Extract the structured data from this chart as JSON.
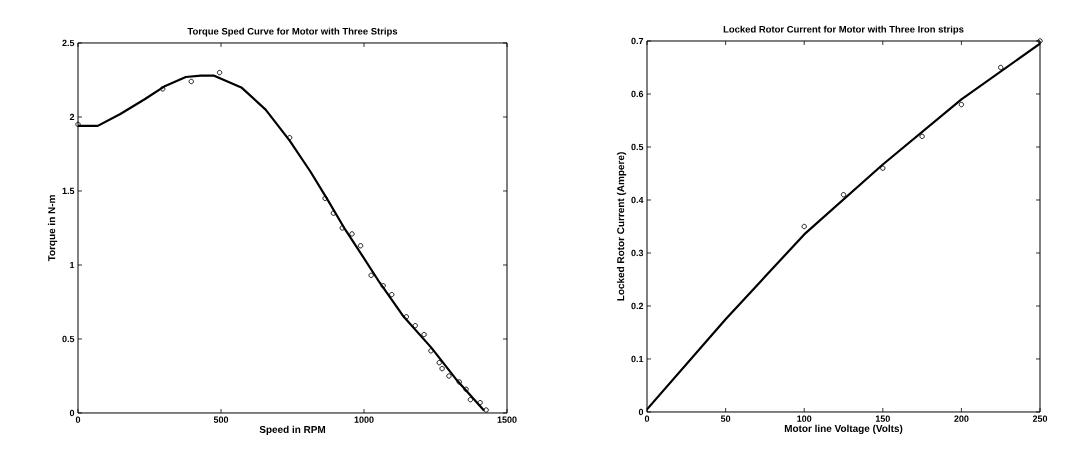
{
  "chart_data": [
    {
      "type": "scatter",
      "title": "Torque Sped Curve for Motor with Three Strips",
      "xlabel": "Speed in RPM",
      "ylabel": "Torque in N-m",
      "xlim": [
        0,
        1500
      ],
      "ylim": [
        0,
        2.5
      ],
      "xticks": [
        0,
        500,
        1000,
        1500
      ],
      "yticks": [
        0,
        0.5,
        1,
        1.5,
        2,
        2.5
      ],
      "series": [
        {
          "marker": "circle",
          "color": "#000000",
          "x": [
            0,
            296,
            396,
            495,
            740,
            864,
            893,
            924,
            958,
            988,
            1025,
            1067,
            1097,
            1148,
            1179,
            1210,
            1234,
            1263,
            1273,
            1297,
            1333,
            1357,
            1372,
            1406,
            1427
          ],
          "values": [
            1.95,
            2.19,
            2.24,
            2.3,
            1.86,
            1.45,
            1.35,
            1.25,
            1.21,
            1.13,
            0.93,
            0.86,
            0.8,
            0.65,
            0.59,
            0.53,
            0.42,
            0.34,
            0.3,
            0.25,
            0.21,
            0.16,
            0.09,
            0.07,
            0.02
          ]
        },
        {
          "type": "line",
          "marker": "none",
          "color": "#000000",
          "x": [
            0,
            69,
            148,
            233,
            305,
            377,
            430,
            474,
            571,
            656,
            740,
            813,
            873,
            934,
            995,
            1055,
            1139,
            1236,
            1321,
            1418
          ],
          "values": [
            1.94,
            1.94,
            2.02,
            2.12,
            2.21,
            2.27,
            2.28,
            2.28,
            2.2,
            2.05,
            1.84,
            1.63,
            1.44,
            1.24,
            1.06,
            0.88,
            0.65,
            0.44,
            0.23,
            0.02
          ]
        }
      ]
    },
    {
      "type": "scatter",
      "title": "Locked Rotor Current for Motor with Three Iron strips",
      "xlabel": "Motor line Voltage (Volts)",
      "ylabel": "Locked Rotor Current (Ampere)",
      "xlim": [
        0,
        250
      ],
      "ylim": [
        0,
        0.7
      ],
      "xticks": [
        0,
        50,
        100,
        150,
        200,
        250
      ],
      "yticks": [
        0,
        0.1,
        0.2,
        0.3,
        0.4,
        0.5,
        0.6,
        0.7
      ],
      "series": [
        {
          "marker": "circle",
          "color": "#000000",
          "x": [
            100,
            125,
            150,
            175,
            200,
            225,
            250
          ],
          "values": [
            0.35,
            0.41,
            0.46,
            0.52,
            0.58,
            0.65,
            0.7
          ]
        },
        {
          "type": "line",
          "marker": "none",
          "color": "#000000",
          "x": [
            0,
            50,
            100,
            150,
            200,
            250
          ],
          "values": [
            0.005,
            0.175,
            0.335,
            0.467,
            0.59,
            0.695
          ]
        }
      ]
    }
  ]
}
